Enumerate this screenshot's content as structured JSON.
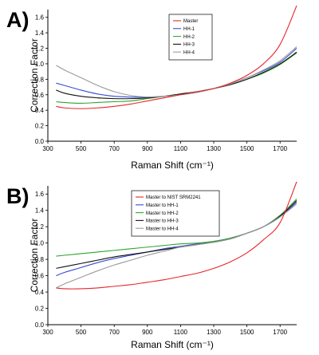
{
  "chart_data": [
    {
      "type": "line",
      "panel_label": "A)",
      "xlabel": "Raman Shift (cm⁻¹)",
      "ylabel": "Correction Factor",
      "xlim": [
        300,
        1800
      ],
      "ylim": [
        0,
        1.7
      ],
      "x_ticks": [
        300,
        500,
        700,
        900,
        1100,
        1300,
        1500,
        1700
      ],
      "y_ticks": [
        0.0,
        0.2,
        0.4,
        0.6,
        0.8,
        1.0,
        1.2,
        1.4,
        1.6
      ],
      "x_tick_labels": [
        "300",
        "500",
        "700",
        "900",
        "1100",
        "1300",
        "1500",
        "1700"
      ],
      "y_tick_labels": [
        "0.0",
        "0.2",
        "0.4",
        "0.6",
        "0.8",
        "1.0",
        "1.2",
        "1.4",
        "1.6"
      ],
      "grid": false,
      "legend_position": "top-right",
      "x": [
        350,
        400,
        500,
        600,
        700,
        800,
        900,
        1000,
        1100,
        1200,
        1300,
        1400,
        1500,
        1600,
        1700,
        1800
      ],
      "series": [
        {
          "name": "Master",
          "color": "#e8262b",
          "values": [
            0.45,
            0.43,
            0.42,
            0.43,
            0.45,
            0.48,
            0.52,
            0.56,
            0.6,
            0.64,
            0.68,
            0.75,
            0.85,
            1.0,
            1.25,
            1.75
          ]
        },
        {
          "name": "HH-1",
          "color": "#3a4bd1",
          "values": [
            0.75,
            0.72,
            0.66,
            0.61,
            0.58,
            0.57,
            0.57,
            0.58,
            0.6,
            0.63,
            0.68,
            0.74,
            0.82,
            0.91,
            1.02,
            1.2
          ]
        },
        {
          "name": "HH-2",
          "color": "#2fa52f",
          "values": [
            0.51,
            0.5,
            0.49,
            0.5,
            0.51,
            0.52,
            0.55,
            0.58,
            0.61,
            0.64,
            0.68,
            0.73,
            0.8,
            0.88,
            0.99,
            1.14
          ]
        },
        {
          "name": "HH-3",
          "color": "#111111",
          "values": [
            0.66,
            0.62,
            0.58,
            0.56,
            0.55,
            0.55,
            0.56,
            0.58,
            0.61,
            0.64,
            0.68,
            0.73,
            0.8,
            0.89,
            1.0,
            1.15
          ]
        },
        {
          "name": "HH-4",
          "color": "#9a9a9a",
          "values": [
            0.98,
            0.92,
            0.82,
            0.72,
            0.64,
            0.59,
            0.57,
            0.58,
            0.6,
            0.63,
            0.68,
            0.74,
            0.82,
            0.92,
            1.04,
            1.22
          ]
        }
      ]
    },
    {
      "type": "line",
      "panel_label": "B)",
      "xlabel": "Raman Shift (cm⁻¹)",
      "ylabel": "Correction Factor",
      "xlim": [
        300,
        1800
      ],
      "ylim": [
        0,
        1.7
      ],
      "x_ticks": [
        300,
        500,
        700,
        900,
        1100,
        1300,
        1500,
        1700
      ],
      "y_ticks": [
        0.0,
        0.2,
        0.4,
        0.6,
        0.8,
        1.0,
        1.2,
        1.4,
        1.6
      ],
      "x_tick_labels": [
        "300",
        "500",
        "700",
        "900",
        "1100",
        "1300",
        "1500",
        "1700"
      ],
      "y_tick_labels": [
        "0.0",
        "0.2",
        "0.4",
        "0.6",
        "0.8",
        "1.0",
        "1.2",
        "1.4",
        "1.6"
      ],
      "grid": false,
      "legend_position": "top-right",
      "x": [
        350,
        400,
        500,
        600,
        700,
        800,
        900,
        1000,
        1100,
        1200,
        1300,
        1400,
        1500,
        1600,
        1700,
        1800
      ],
      "series": [
        {
          "name": "Master to NIST SRM2241",
          "color": "#e8262b",
          "values": [
            0.45,
            0.44,
            0.44,
            0.45,
            0.47,
            0.49,
            0.52,
            0.55,
            0.59,
            0.63,
            0.69,
            0.77,
            0.88,
            1.04,
            1.25,
            1.75
          ]
        },
        {
          "name": "Master to HH-1",
          "color": "#3a4bd1",
          "values": [
            0.6,
            0.64,
            0.7,
            0.76,
            0.81,
            0.85,
            0.89,
            0.93,
            0.96,
            0.99,
            1.02,
            1.06,
            1.12,
            1.2,
            1.32,
            1.5
          ]
        },
        {
          "name": "Master to HH-2",
          "color": "#2fa52f",
          "values": [
            0.84,
            0.85,
            0.87,
            0.89,
            0.91,
            0.93,
            0.95,
            0.97,
            0.99,
            1.0,
            1.02,
            1.06,
            1.12,
            1.2,
            1.34,
            1.54
          ]
        },
        {
          "name": "Master to HH-3",
          "color": "#111111",
          "values": [
            0.69,
            0.71,
            0.75,
            0.79,
            0.83,
            0.86,
            0.89,
            0.92,
            0.95,
            0.98,
            1.01,
            1.05,
            1.12,
            1.2,
            1.33,
            1.52
          ]
        },
        {
          "name": "Master to HH-4",
          "color": "#9a9a9a",
          "values": [
            0.45,
            0.5,
            0.58,
            0.66,
            0.73,
            0.79,
            0.85,
            0.9,
            0.95,
            0.98,
            1.01,
            1.05,
            1.12,
            1.2,
            1.32,
            1.48
          ]
        }
      ]
    }
  ]
}
